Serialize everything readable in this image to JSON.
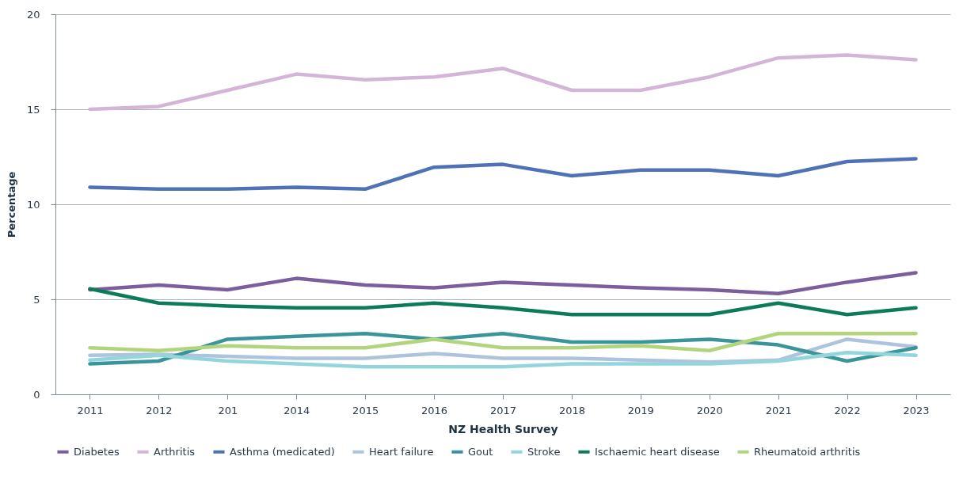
{
  "chart_data": {
    "type": "line",
    "xlabel": "NZ Health Survey",
    "ylabel": "Percentage",
    "categories": [
      "2011",
      "2012",
      "201",
      "2014",
      "2015",
      "2016",
      "2017",
      "2018",
      "2019",
      "2020",
      "2021",
      "2022",
      "2023"
    ],
    "ylim": [
      0,
      20
    ],
    "yticks": [
      0,
      5,
      10,
      15,
      20
    ],
    "grid": "y",
    "legend": "bottom",
    "marker": "none",
    "line_style": "solid",
    "series": [
      {
        "name": "Diabetes",
        "color": "#7b5e9e",
        "values": [
          5.5,
          5.75,
          5.5,
          6.1,
          5.75,
          5.6,
          5.9,
          5.75,
          5.6,
          5.5,
          5.3,
          5.9,
          6.4
        ]
      },
      {
        "name": "Arthritis",
        "color": "#d4b5d8",
        "values": [
          15.0,
          15.15,
          16.0,
          16.85,
          16.55,
          16.7,
          17.15,
          16.0,
          16.0,
          16.7,
          17.7,
          17.85,
          17.6
        ]
      },
      {
        "name": "Asthma (medicated)",
        "color": "#4e72b5",
        "values": [
          10.9,
          10.8,
          10.8,
          10.9,
          10.8,
          11.95,
          12.1,
          11.5,
          11.8,
          11.8,
          11.5,
          12.25,
          12.4
        ]
      },
      {
        "name": "Heart failure",
        "color": "#aec3dd",
        "values": [
          2.05,
          2.1,
          2.0,
          1.9,
          1.9,
          2.15,
          1.9,
          1.9,
          1.8,
          1.7,
          1.8,
          2.9,
          2.5
        ]
      },
      {
        "name": "Gout",
        "color": "#3a959b",
        "values": [
          1.6,
          1.75,
          2.9,
          3.05,
          3.2,
          2.9,
          3.2,
          2.75,
          2.75,
          2.9,
          2.6,
          1.75,
          2.45
        ]
      },
      {
        "name": "Stroke",
        "color": "#94d5dc",
        "values": [
          1.8,
          2.05,
          1.75,
          1.6,
          1.45,
          1.45,
          1.45,
          1.6,
          1.6,
          1.6,
          1.75,
          2.2,
          2.05
        ]
      },
      {
        "name": "Ischaemic heart disease",
        "color": "#0c7b5a",
        "values": [
          5.55,
          4.8,
          4.65,
          4.55,
          4.55,
          4.8,
          4.55,
          4.2,
          4.2,
          4.2,
          4.8,
          4.2,
          4.55
        ]
      },
      {
        "name": "Rheumatoid arthritis",
        "color": "#b1d47c",
        "values": [
          2.45,
          2.3,
          2.55,
          2.45,
          2.45,
          2.9,
          2.45,
          2.45,
          2.55,
          2.3,
          3.2,
          3.2,
          3.2
        ]
      }
    ]
  }
}
